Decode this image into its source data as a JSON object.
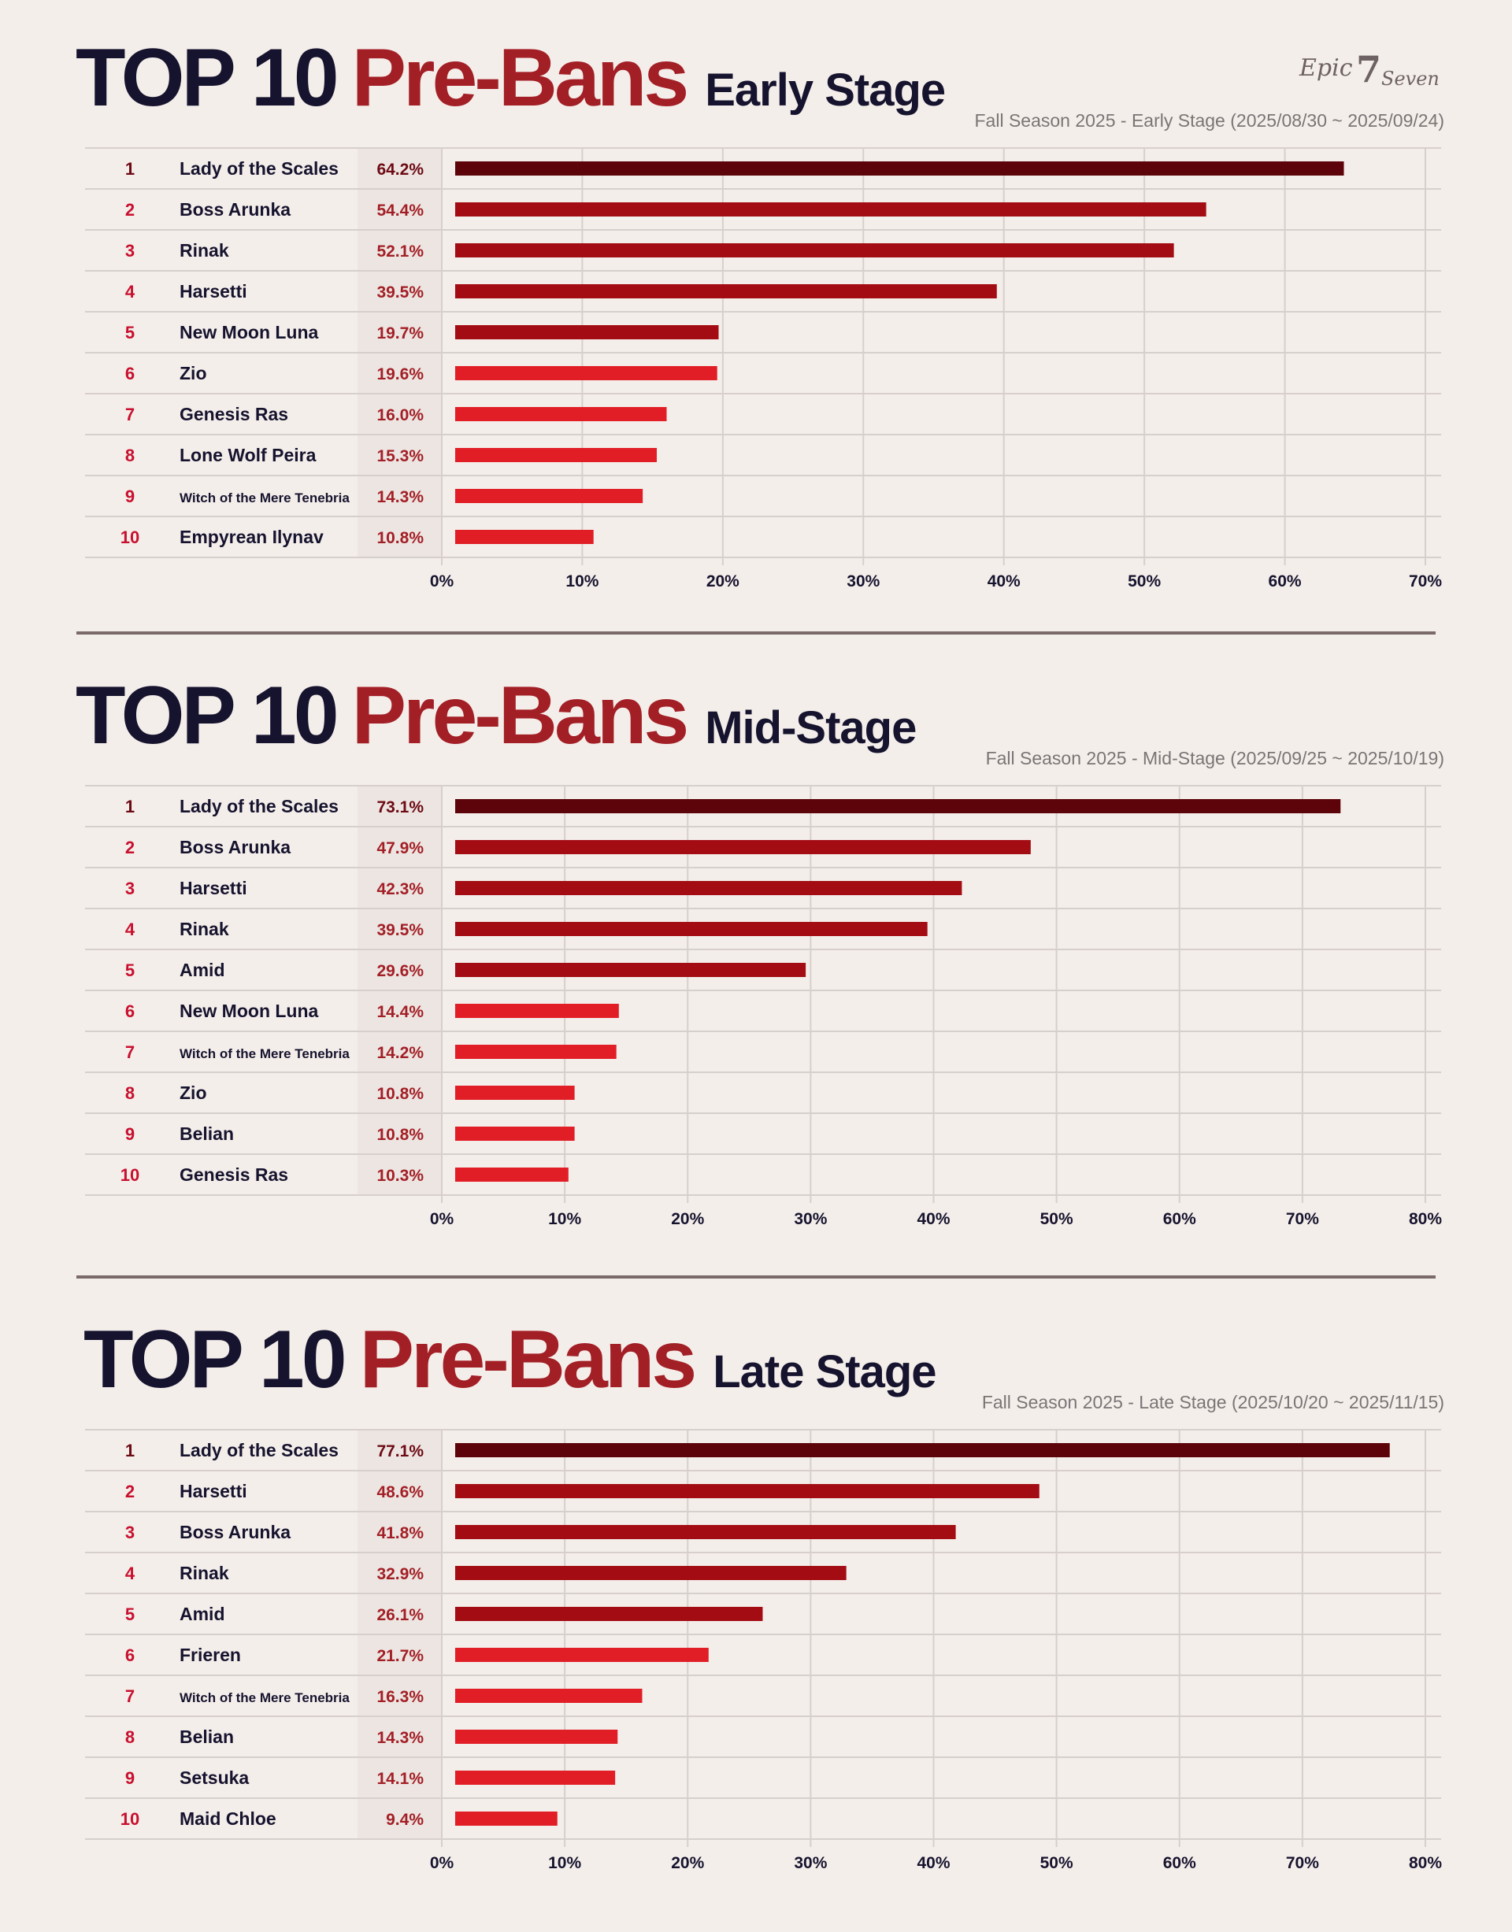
{
  "logo_text": "Epic7Seven",
  "colors": {
    "background": "#f4eeea",
    "title_dark": "#16132e",
    "title_red": "#a31f26",
    "bar_rank1": "#5c0409",
    "bar_rank2_5": "#a20c12",
    "bar_rank6_10": "#e11d26",
    "rank_number": "#c8102e",
    "percent_text": "#a31f26"
  },
  "sections": [
    {
      "title_part1": "TOP 10",
      "title_part2": "Pre-Bans",
      "title_part3": "Early Stage",
      "subtitle": "Fall Season 2025 - Early Stage (2025/08/30 ~ 2025/09/24)"
    },
    {
      "title_part1": "TOP 10",
      "title_part2": "Pre-Bans",
      "title_part3": "Mid-Stage",
      "subtitle": "Fall Season 2025 - Mid-Stage (2025/09/25 ~ 2025/10/19)"
    },
    {
      "title_part1": "TOP 10",
      "title_part2": "Pre-Bans",
      "title_part3": "Late Stage",
      "subtitle": "Fall Season 2025 - Late Stage (2025/10/20 ~ 2025/11/15)"
    }
  ],
  "chart_data": [
    {
      "type": "bar",
      "orientation": "horizontal",
      "ranks": [
        "1",
        "2",
        "3",
        "4",
        "5",
        "6",
        "7",
        "8",
        "9",
        "10"
      ],
      "categories": [
        "Lady of the Scales",
        "Boss Arunka",
        "Rinak",
        "Harsetti",
        "New Moon Luna",
        "Zio",
        "Genesis Ras",
        "Lone Wolf Peira",
        "Witch of the Mere Tenebria",
        "Empyrean Ilynav"
      ],
      "value_labels": [
        "64.2%",
        "54.4%",
        "52.1%",
        "39.5%",
        "19.7%",
        "19.6%",
        "16.0%",
        "15.3%",
        "14.3%",
        "10.8%"
      ],
      "values": [
        64.2,
        54.4,
        52.1,
        39.5,
        19.7,
        19.6,
        16.0,
        15.3,
        14.3,
        10.8
      ],
      "xlim": [
        0,
        70
      ],
      "tick_labels": [
        "0%",
        "10%",
        "20%",
        "30%",
        "40%",
        "50%",
        "60%",
        "70%"
      ],
      "grid": true
    },
    {
      "type": "bar",
      "orientation": "horizontal",
      "ranks": [
        "1",
        "2",
        "3",
        "4",
        "5",
        "6",
        "7",
        "8",
        "9",
        "10"
      ],
      "categories": [
        "Lady of the Scales",
        "Boss Arunka",
        "Harsetti",
        "Rinak",
        "Amid",
        "New Moon Luna",
        "Witch of the Mere Tenebria",
        "Zio",
        "Belian",
        "Genesis Ras"
      ],
      "value_labels": [
        "73.1%",
        "47.9%",
        "42.3%",
        "39.5%",
        "29.6%",
        "14.4%",
        "14.2%",
        "10.8%",
        "10.8%",
        "10.3%"
      ],
      "values": [
        73.1,
        47.9,
        42.3,
        39.5,
        29.6,
        14.4,
        14.2,
        10.8,
        10.8,
        10.3
      ],
      "xlim": [
        0,
        80
      ],
      "tick_labels": [
        "0%",
        "10%",
        "20%",
        "30%",
        "40%",
        "50%",
        "60%",
        "70%",
        "80%"
      ],
      "grid": true
    },
    {
      "type": "bar",
      "orientation": "horizontal",
      "ranks": [
        "1",
        "2",
        "3",
        "4",
        "5",
        "6",
        "7",
        "8",
        "9",
        "10"
      ],
      "categories": [
        "Lady of the Scales",
        "Harsetti",
        "Boss Arunka",
        "Rinak",
        "Amid",
        "Frieren",
        "Witch of the Mere Tenebria",
        "Belian",
        "Setsuka",
        "Maid Chloe"
      ],
      "value_labels": [
        "77.1%",
        "48.6%",
        "41.8%",
        "32.9%",
        "26.1%",
        "21.7%",
        "16.3%",
        "14.3%",
        "14.1%",
        "9.4%"
      ],
      "values": [
        77.1,
        48.6,
        41.8,
        32.9,
        26.1,
        21.7,
        16.3,
        14.3,
        14.1,
        9.4
      ],
      "xlim": [
        0,
        80
      ],
      "tick_labels": [
        "0%",
        "10%",
        "20%",
        "30%",
        "40%",
        "50%",
        "60%",
        "70%",
        "80%"
      ],
      "grid": true
    }
  ]
}
